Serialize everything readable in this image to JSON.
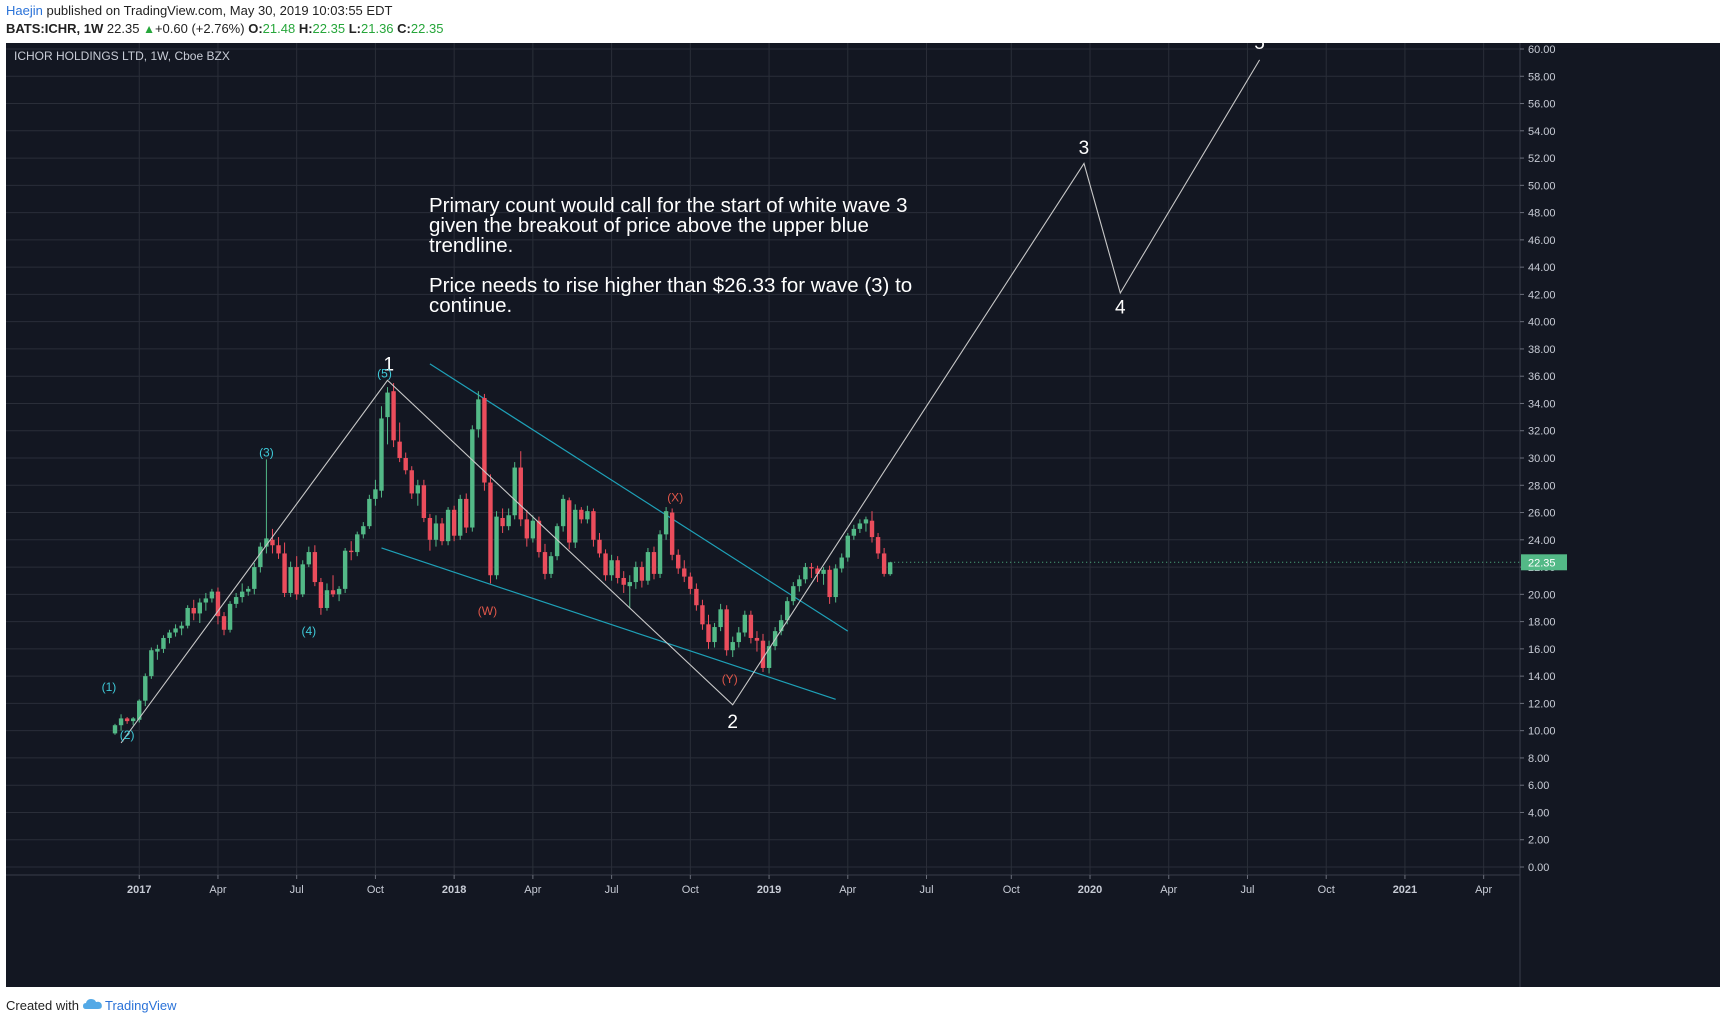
{
  "header": {
    "author": "Haejin",
    "published_text": " published on TradingView.com, May 30, 2019 10:03:55 EDT",
    "symbol": "BATS:ICHR",
    "interval": "1W",
    "last": "22.35",
    "change_icon": "triangle-up-icon",
    "change": "+0.60 (+2.76%)",
    "o_label": "O:",
    "o_value": "21.48",
    "h_label": "H:",
    "h_value": "22.35",
    "l_label": "L:",
    "l_value": "21.36",
    "c_label": "C:",
    "c_value": "22.35"
  },
  "footer": {
    "created_with": "Created with",
    "logo_icon": "tradingview-cloud-icon",
    "brand": "TradingView"
  },
  "chart_data": {
    "type": "candlestick",
    "title": "ICHOR HOLDINGS LTD, 1W, Cboe BZX",
    "last_price_label": "22.35",
    "ylim": [
      0,
      60
    ],
    "y_ticks": [
      "0.00",
      "2.00",
      "4.00",
      "6.00",
      "8.00",
      "10.00",
      "12.00",
      "14.00",
      "16.00",
      "18.00",
      "20.00",
      "22.00",
      "24.00",
      "26.00",
      "28.00",
      "30.00",
      "32.00",
      "34.00",
      "36.00",
      "38.00",
      "40.00",
      "42.00",
      "44.00",
      "46.00",
      "48.00",
      "50.00",
      "52.00",
      "54.00",
      "56.00",
      "58.00",
      "60.00"
    ],
    "x_ticks": [
      {
        "label": "2017",
        "t": 0,
        "bold": true
      },
      {
        "label": "Apr",
        "t": 13
      },
      {
        "label": "Jul",
        "t": 26
      },
      {
        "label": "Oct",
        "t": 39
      },
      {
        "label": "2018",
        "t": 52,
        "bold": true
      },
      {
        "label": "Apr",
        "t": 65
      },
      {
        "label": "Jul",
        "t": 78
      },
      {
        "label": "Oct",
        "t": 91
      },
      {
        "label": "2019",
        "t": 104,
        "bold": true
      },
      {
        "label": "Apr",
        "t": 117
      },
      {
        "label": "Jul",
        "t": 130
      },
      {
        "label": "Oct",
        "t": 144
      },
      {
        "label": "2020",
        "t": 157,
        "bold": true
      },
      {
        "label": "Apr",
        "t": 170
      },
      {
        "label": "Jul",
        "t": 183
      },
      {
        "label": "Oct",
        "t": 196
      },
      {
        "label": "2021",
        "t": 209,
        "bold": true
      },
      {
        "label": "Apr",
        "t": 222
      }
    ],
    "t_range": [
      -22,
      228
    ],
    "candles": [
      [
        -4,
        9.8,
        10.5,
        9.7,
        10.4
      ],
      [
        -3,
        10.4,
        11.2,
        10.0,
        10.9
      ],
      [
        -2,
        10.9,
        11.0,
        10.5,
        10.7
      ],
      [
        -1,
        10.7,
        11.0,
        10.4,
        10.9
      ],
      [
        0,
        10.8,
        12.3,
        10.6,
        12.2
      ],
      [
        1,
        12.2,
        14.2,
        11.8,
        14.0
      ],
      [
        2,
        14.0,
        16.1,
        13.8,
        15.9
      ],
      [
        3,
        15.8,
        16.3,
        15.2,
        16.0
      ],
      [
        4,
        16.0,
        17.0,
        15.7,
        16.8
      ],
      [
        5,
        16.8,
        17.4,
        16.4,
        17.2
      ],
      [
        6,
        17.2,
        17.8,
        16.9,
        17.5
      ],
      [
        7,
        17.5,
        18.0,
        17.0,
        17.7
      ],
      [
        8,
        17.7,
        19.2,
        17.5,
        19.0
      ],
      [
        9,
        19.0,
        19.6,
        18.1,
        18.6
      ],
      [
        10,
        18.6,
        19.7,
        17.9,
        19.4
      ],
      [
        11,
        19.4,
        20.1,
        18.8,
        19.7
      ],
      [
        12,
        19.7,
        20.4,
        19.4,
        20.2
      ],
      [
        13,
        20.2,
        20.5,
        17.8,
        18.4
      ],
      [
        14,
        18.4,
        18.7,
        17.0,
        17.4
      ],
      [
        15,
        17.4,
        19.5,
        17.2,
        19.3
      ],
      [
        16,
        19.3,
        20.1,
        19.0,
        19.8
      ],
      [
        17,
        19.8,
        20.8,
        19.4,
        20.2
      ],
      [
        18,
        20.2,
        20.6,
        19.9,
        20.4
      ],
      [
        19,
        20.4,
        22.3,
        20.0,
        22.0
      ],
      [
        20,
        22.0,
        23.8,
        21.6,
        23.5
      ],
      [
        21,
        23.5,
        29.9,
        23.0,
        24.1
      ],
      [
        22,
        24.0,
        24.8,
        23.0,
        23.6
      ],
      [
        23,
        23.6,
        24.2,
        22.6,
        23.0
      ],
      [
        24,
        23.0,
        23.8,
        19.8,
        20.1
      ],
      [
        25,
        20.1,
        22.4,
        19.8,
        22.0
      ],
      [
        26,
        22.0,
        22.8,
        19.6,
        20.0
      ],
      [
        27,
        20.0,
        22.5,
        19.8,
        22.2
      ],
      [
        28,
        22.2,
        23.5,
        22.0,
        23.1
      ],
      [
        29,
        23.1,
        23.6,
        20.6,
        20.9
      ],
      [
        30,
        20.9,
        21.2,
        18.5,
        19.0
      ],
      [
        31,
        19.0,
        20.8,
        18.8,
        20.3
      ],
      [
        32,
        20.3,
        21.4,
        19.8,
        20.0
      ],
      [
        33,
        20.0,
        20.6,
        19.5,
        20.4
      ],
      [
        34,
        20.4,
        23.4,
        20.1,
        23.2
      ],
      [
        35,
        23.2,
        23.9,
        22.5,
        23.1
      ],
      [
        36,
        23.1,
        24.6,
        22.8,
        24.4
      ],
      [
        37,
        24.4,
        25.3,
        24.1,
        25.0
      ],
      [
        38,
        25.0,
        27.3,
        24.8,
        27.0
      ],
      [
        39,
        27.0,
        28.4,
        26.5,
        27.7
      ],
      [
        40,
        27.6,
        33.8,
        27.1,
        32.9
      ],
      [
        41,
        33.0,
        35.2,
        31.0,
        34.8
      ],
      [
        42,
        34.9,
        35.5,
        30.8,
        31.3
      ],
      [
        43,
        31.2,
        32.6,
        29.7,
        30.0
      ],
      [
        44,
        30.0,
        30.4,
        28.8,
        29.1
      ],
      [
        45,
        29.1,
        29.4,
        27.0,
        27.4
      ],
      [
        46,
        27.4,
        28.4,
        26.5,
        28.0
      ],
      [
        47,
        28.0,
        28.4,
        25.3,
        25.6
      ],
      [
        48,
        25.6,
        25.9,
        23.2,
        24.0
      ],
      [
        49,
        24.0,
        25.8,
        23.5,
        25.2
      ],
      [
        50,
        25.2,
        25.6,
        23.6,
        23.9
      ],
      [
        51,
        23.9,
        26.4,
        23.6,
        26.2
      ],
      [
        52,
        26.2,
        26.5,
        23.9,
        24.3
      ],
      [
        53,
        24.3,
        27.3,
        24.0,
        27.0
      ],
      [
        54,
        27.0,
        27.4,
        24.5,
        24.9
      ],
      [
        55,
        24.9,
        32.4,
        24.6,
        32.1
      ],
      [
        56,
        32.1,
        34.9,
        31.5,
        34.3
      ],
      [
        57,
        34.4,
        34.7,
        27.6,
        28.2
      ],
      [
        58,
        28.2,
        28.8,
        20.8,
        21.4
      ],
      [
        59,
        21.4,
        26.1,
        21.1,
        25.7
      ],
      [
        60,
        25.6,
        26.3,
        24.5,
        25.0
      ],
      [
        61,
        25.0,
        26.3,
        24.7,
        25.8
      ],
      [
        62,
        25.8,
        29.7,
        25.5,
        29.3
      ],
      [
        63,
        29.3,
        30.5,
        25.0,
        25.5
      ],
      [
        64,
        25.5,
        26.2,
        23.5,
        24.1
      ],
      [
        65,
        24.1,
        25.8,
        23.8,
        25.4
      ],
      [
        66,
        25.4,
        25.7,
        22.7,
        23.1
      ],
      [
        67,
        23.1,
        23.7,
        21.1,
        21.5
      ],
      [
        68,
        21.5,
        23.1,
        21.2,
        22.8
      ],
      [
        69,
        22.8,
        25.2,
        22.5,
        25.0
      ],
      [
        70,
        25.0,
        27.3,
        24.6,
        27.0
      ],
      [
        71,
        26.9,
        27.1,
        23.3,
        23.8
      ],
      [
        72,
        23.8,
        26.6,
        23.4,
        26.2
      ],
      [
        73,
        26.2,
        26.4,
        25.2,
        25.5
      ],
      [
        74,
        25.5,
        26.5,
        25.2,
        26.1
      ],
      [
        75,
        26.1,
        26.3,
        23.5,
        24.0
      ],
      [
        76,
        24.0,
        24.5,
        22.7,
        23.0
      ],
      [
        77,
        23.0,
        23.3,
        21.0,
        21.4
      ],
      [
        78,
        21.4,
        22.9,
        21.0,
        22.5
      ],
      [
        79,
        22.5,
        22.8,
        20.8,
        21.2
      ],
      [
        80,
        21.2,
        21.7,
        20.1,
        20.7
      ],
      [
        81,
        20.6,
        21.4,
        19.0,
        20.9
      ],
      [
        82,
        20.9,
        22.4,
        20.4,
        22.0
      ],
      [
        83,
        22.0,
        22.4,
        20.5,
        21.0
      ],
      [
        84,
        21.0,
        23.4,
        20.7,
        23.1
      ],
      [
        85,
        23.1,
        23.5,
        21.1,
        21.5
      ],
      [
        86,
        21.5,
        24.7,
        21.2,
        24.4
      ],
      [
        87,
        24.4,
        26.4,
        24.0,
        26.1
      ],
      [
        88,
        26.0,
        26.3,
        22.5,
        22.9
      ],
      [
        89,
        22.9,
        23.3,
        21.5,
        21.9
      ],
      [
        90,
        21.9,
        22.5,
        20.9,
        21.3
      ],
      [
        91,
        21.3,
        21.6,
        20.0,
        20.4
      ],
      [
        92,
        20.4,
        20.8,
        18.8,
        19.2
      ],
      [
        93,
        19.2,
        19.6,
        17.4,
        17.8
      ],
      [
        94,
        17.8,
        18.5,
        16.0,
        16.5
      ],
      [
        95,
        16.5,
        17.9,
        16.1,
        17.6
      ],
      [
        96,
        17.6,
        19.3,
        17.3,
        18.9
      ],
      [
        97,
        18.9,
        19.2,
        15.5,
        15.9
      ],
      [
        98,
        15.9,
        16.9,
        15.4,
        16.5
      ],
      [
        99,
        16.5,
        17.6,
        16.1,
        17.2
      ],
      [
        100,
        17.2,
        18.8,
        16.9,
        18.5
      ],
      [
        101,
        18.5,
        18.8,
        16.4,
        16.8
      ],
      [
        102,
        16.8,
        17.3,
        15.8,
        16.6
      ],
      [
        103,
        16.6,
        17.1,
        14.3,
        14.6
      ],
      [
        104,
        14.6,
        16.6,
        14.2,
        16.2
      ],
      [
        105,
        16.2,
        17.6,
        15.9,
        17.3
      ],
      [
        106,
        17.3,
        18.5,
        17.0,
        18.1
      ],
      [
        107,
        18.1,
        19.8,
        17.8,
        19.5
      ],
      [
        108,
        19.5,
        20.9,
        19.2,
        20.6
      ],
      [
        109,
        20.6,
        21.4,
        20.2,
        21.1
      ],
      [
        110,
        21.1,
        22.3,
        20.8,
        22.0
      ],
      [
        111,
        22.0,
        22.3,
        21.2,
        21.9
      ],
      [
        112,
        21.9,
        22.1,
        20.9,
        21.5
      ],
      [
        113,
        21.5,
        22.0,
        20.7,
        21.8
      ],
      [
        114,
        21.8,
        22.1,
        19.3,
        19.8
      ],
      [
        115,
        19.8,
        22.2,
        19.4,
        21.9
      ],
      [
        116,
        21.9,
        23.0,
        21.6,
        22.7
      ],
      [
        117,
        22.7,
        24.5,
        22.4,
        24.3
      ],
      [
        118,
        24.3,
        25.1,
        24.0,
        24.8
      ],
      [
        119,
        24.8,
        25.5,
        24.5,
        25.2
      ],
      [
        120,
        25.2,
        25.7,
        24.6,
        25.5
      ],
      [
        121,
        25.4,
        26.1,
        23.8,
        24.2
      ],
      [
        122,
        24.2,
        24.5,
        22.6,
        23.0
      ],
      [
        123,
        23.0,
        23.4,
        21.3,
        21.5
      ],
      [
        124,
        21.48,
        22.35,
        21.36,
        22.35
      ]
    ],
    "white_wave_line": [
      [
        -3,
        9.1
      ],
      [
        41,
        35.7
      ],
      [
        98,
        11.9
      ],
      [
        156,
        51.6
      ],
      [
        162,
        42.1
      ],
      [
        185,
        59.2
      ]
    ],
    "white_labels": [
      {
        "text": "1",
        "t": 41.2,
        "v": 36.4
      },
      {
        "text": "2",
        "t": 98,
        "v": 10.2
      },
      {
        "text": "3",
        "t": 156,
        "v": 52.3
      },
      {
        "text": "4",
        "t": 162,
        "v": 40.6
      },
      {
        "text": "5",
        "t": 185,
        "v": 60.0
      }
    ],
    "cyan_labels": [
      {
        "text": "(1)",
        "t": -5,
        "v": 12.9
      },
      {
        "text": "(2)",
        "t": -2,
        "v": 9.4
      },
      {
        "text": "(3)",
        "t": 21,
        "v": 30.1
      },
      {
        "text": "(4)",
        "t": 28,
        "v": 17.0
      },
      {
        "text": "(5)",
        "t": 40.5,
        "v": 35.9
      }
    ],
    "red_labels": [
      {
        "text": "(W)",
        "t": 57.5,
        "v": 18.5
      },
      {
        "text": "(X)",
        "t": 88.5,
        "v": 26.8
      },
      {
        "text": "(Y)",
        "t": 97.5,
        "v": 13.5
      }
    ],
    "blue_trendlines": [
      [
        [
          48,
          36.9
        ],
        [
          117,
          17.3
        ]
      ],
      [
        [
          40,
          23.4
        ],
        [
          115,
          12.3
        ]
      ]
    ],
    "annotation_text": [
      "Primary count would call for the start of white wave 3",
      "given the breakout of price above the upper blue",
      "trendline.",
      "",
      "Price needs to rise higher than $26.33 for wave (3) to",
      "continue."
    ],
    "colors": {
      "background": "#131722",
      "grid": "#2a2e39",
      "up": "#53b987",
      "down": "#eb4d5c",
      "white_wave": "#c8c8c8",
      "cyan": "#3ec9d8",
      "red_label": "#e0574a",
      "trendline": "#1ea1b8",
      "price_label_bg": "#53b987"
    }
  }
}
